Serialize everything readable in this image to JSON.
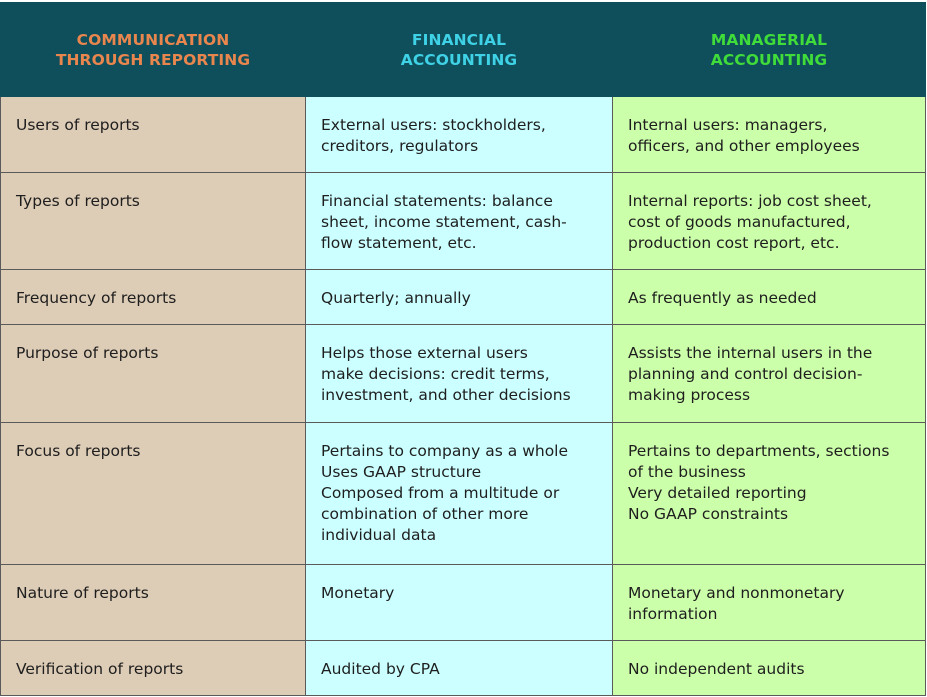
{
  "header": {
    "col1": [
      "COMMUNICATION",
      "THROUGH REPORTING"
    ],
    "col2": [
      "FINANCIAL",
      "ACCOUNTING"
    ],
    "col3": [
      "MANAGERIAL",
      "ACCOUNTING"
    ]
  },
  "colors": {
    "header_bg": "#0f4e5b",
    "header_col1_text": "#e8864e",
    "header_col2_text": "#3fd2e6",
    "header_col3_text": "#3fdc3a",
    "col1_bg": "#ddccb6",
    "col2_bg": "#ccffff",
    "col3_bg": "#ccffaa"
  },
  "rows": [
    {
      "label": "Users of reports",
      "financial": [
        "External users: stockholders,",
        "creditors, regulators"
      ],
      "managerial": [
        "Internal users: managers,",
        "officers, and other employees"
      ]
    },
    {
      "label": "Types of reports",
      "financial": [
        "Financial statements: balance",
        "sheet, income statement, cash-",
        "flow statement, etc."
      ],
      "managerial": [
        "Internal reports: job cost sheet,",
        "cost of goods manufactured,",
        "production cost report, etc."
      ]
    },
    {
      "label": "Frequency of reports",
      "financial": [
        "Quarterly; annually"
      ],
      "managerial": [
        "As frequently as needed"
      ]
    },
    {
      "label": "Purpose of reports",
      "financial": [
        "Helps those external users",
        "make decisions: credit terms,",
        "investment, and other decisions"
      ],
      "managerial": [
        "Assists the internal users in the",
        "planning and control decision-",
        "making process"
      ]
    },
    {
      "label": "Focus of reports",
      "financial": [
        "Pertains to company as a whole",
        "Uses GAAP structure",
        "Composed from a multitude or",
        "combination of other more",
        "individual data"
      ],
      "managerial": [
        "Pertains to departments, sections",
        "of the business",
        "Very detailed reporting",
        "No GAAP constraints"
      ]
    },
    {
      "label": "Nature of reports",
      "financial": [
        "Monetary"
      ],
      "managerial": [
        "Monetary and nonmonetary",
        "information"
      ]
    },
    {
      "label": "Verification of reports",
      "financial": [
        "Audited by CPA"
      ],
      "managerial": [
        "No independent audits"
      ]
    }
  ]
}
